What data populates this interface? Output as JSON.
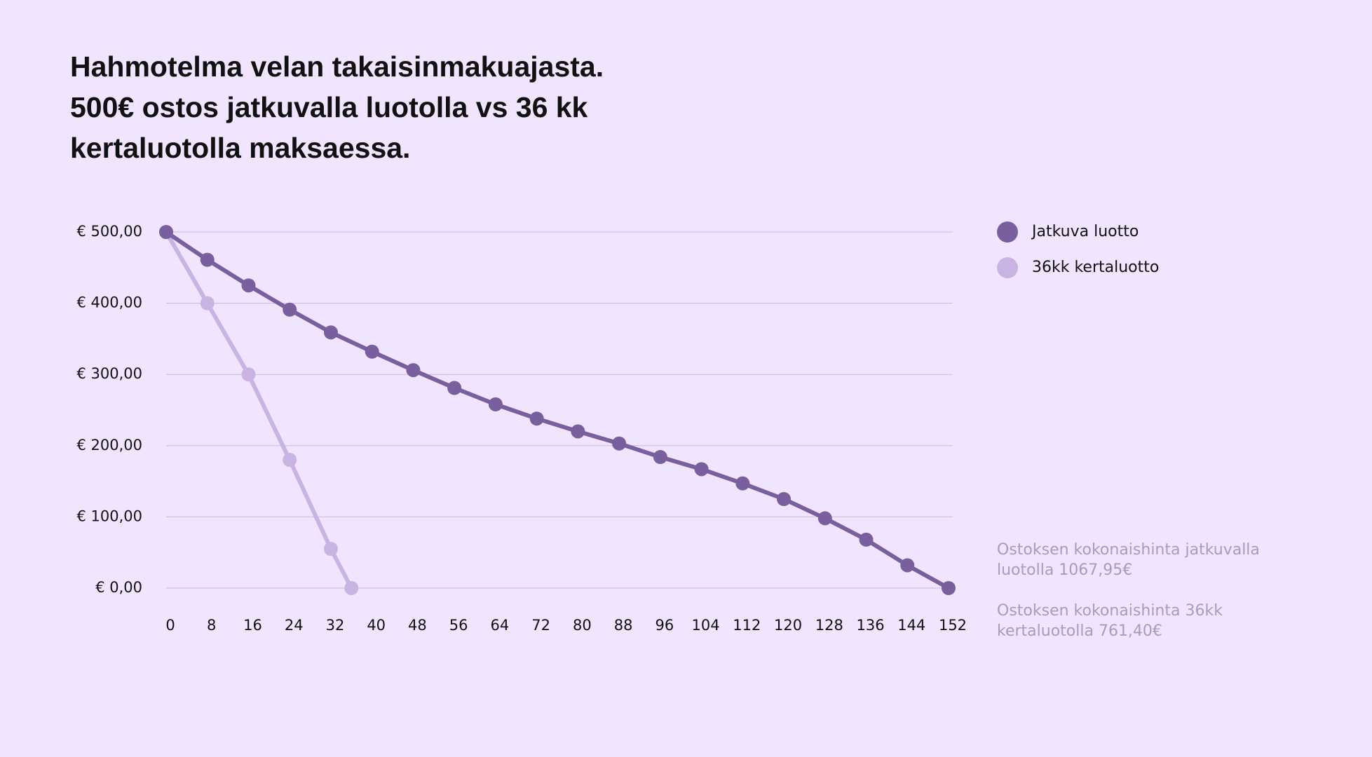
{
  "chart_data": {
    "type": "line",
    "title": [
      "Hahmotelma velan takaisinmakuajasta.",
      "500€ ostos jatkuvalla luotolla vs 36 kk",
      "kertaluotolla maksaessa."
    ],
    "xlim": [
      0,
      152
    ],
    "xticks": [
      0,
      8,
      16,
      24,
      32,
      40,
      48,
      56,
      64,
      72,
      80,
      88,
      96,
      104,
      112,
      120,
      128,
      136,
      144,
      152
    ],
    "ylim": [
      0,
      500
    ],
    "yticks": [
      {
        "value": 0,
        "label": "€ 0,00"
      },
      {
        "value": 100,
        "label": "€ 100,00"
      },
      {
        "value": 200,
        "label": "€ 200,00"
      },
      {
        "value": 300,
        "label": "€ 300,00"
      },
      {
        "value": 400,
        "label": "€ 400,00"
      },
      {
        "value": 500,
        "label": "€ 500,00"
      }
    ],
    "grid": true,
    "legend": "right",
    "series": [
      {
        "name": "Jatkuva luotto",
        "color": "#7a5f9e",
        "x": [
          0,
          8,
          16,
          24,
          32,
          40,
          48,
          56,
          64,
          72,
          80,
          88,
          96,
          104,
          112,
          120,
          128,
          136,
          144,
          152
        ],
        "values": [
          500,
          461,
          425,
          391,
          359,
          332,
          306,
          281,
          258,
          238,
          220,
          203,
          184,
          167,
          147,
          125,
          98,
          68,
          32,
          0
        ]
      },
      {
        "name": "36kk kertaluotto",
        "color": "#c9b3e3",
        "x": [
          0,
          8,
          16,
          24,
          32,
          36
        ],
        "values": [
          500,
          400,
          300,
          180,
          55,
          0
        ]
      }
    ],
    "annotations": [
      [
        "Ostoksen kokonaishinta jatkuvalla",
        "luotolla 1067,95€"
      ],
      [
        "Ostoksen kokonaishinta 36kk",
        "kertaluotolla 761,40€"
      ]
    ]
  }
}
